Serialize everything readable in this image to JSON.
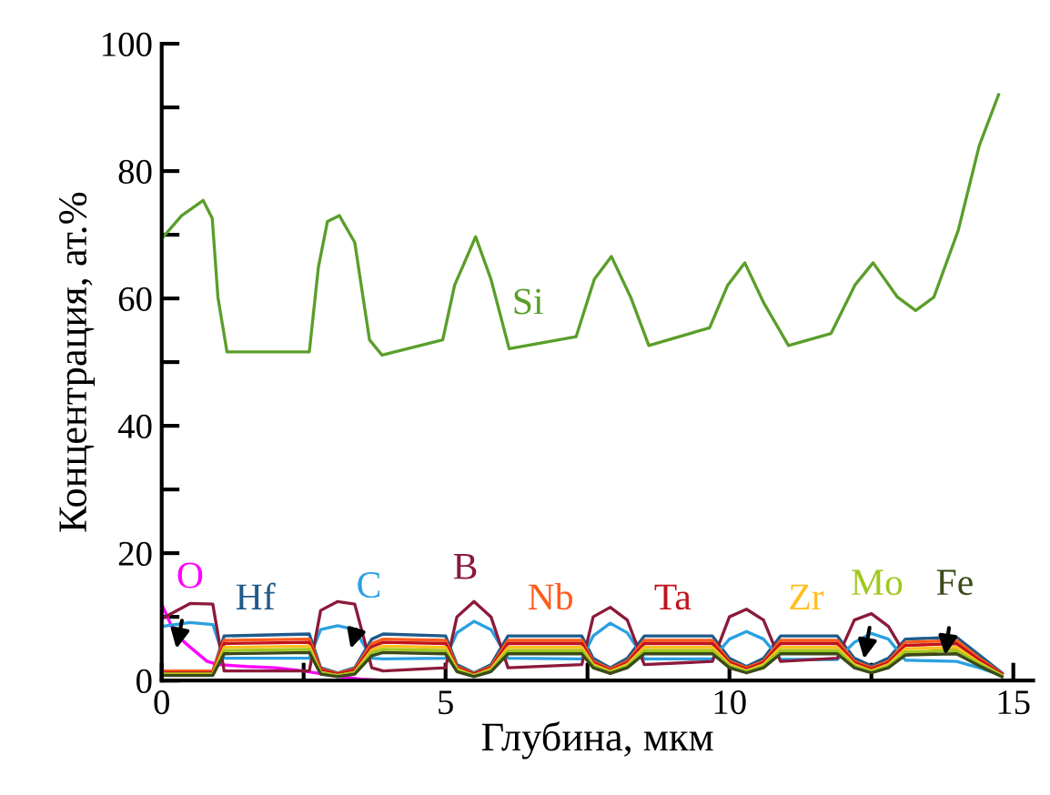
{
  "chart_data": {
    "type": "line",
    "xlabel": "Глубина, мкм",
    "ylabel": "Концентрация, ат.%",
    "xlim": [
      0,
      15.35
    ],
    "ylim": [
      0,
      100
    ],
    "xticks": [
      0,
      {
        "value": 2.5,
        "label": null
      },
      5,
      {
        "value": 7.5,
        "label": null
      },
      10,
      {
        "value": 12.5,
        "label": null
      },
      15
    ],
    "yticks": [
      0,
      {
        "value": 10,
        "label": null
      },
      20,
      {
        "value": 30,
        "label": null
      },
      40,
      {
        "value": 50,
        "label": null
      },
      60,
      {
        "value": 70,
        "label": null
      },
      80,
      {
        "value": 90,
        "label": null
      },
      100
    ],
    "grid": false,
    "legend": false,
    "marker": "none",
    "line_style": "solid",
    "series": [
      {
        "name": "Si",
        "color": "#5a9e2a",
        "x": [
          0.03,
          0.35,
          0.73,
          0.89,
          0.99,
          1.15,
          2.6,
          2.76,
          2.92,
          3.13,
          3.4,
          3.66,
          3.88,
          4.95,
          5.16,
          5.53,
          5.8,
          6.12,
          7.3,
          7.62,
          7.92,
          8.26,
          8.58,
          9.65,
          9.97,
          10.27,
          10.61,
          11.04,
          11.79,
          12.21,
          12.53,
          12.96,
          13.28,
          13.6,
          14.03,
          14.4,
          14.74
        ],
        "values": [
          69.7,
          73,
          75.4,
          72.6,
          60.2,
          51.6,
          51.6,
          64.9,
          72.1,
          73,
          68.8,
          53.5,
          51.1,
          53.5,
          62.1,
          69.7,
          63,
          52.1,
          54,
          63,
          66.6,
          60.2,
          52.6,
          55.4,
          62.1,
          65.6,
          59.2,
          52.6,
          54.5,
          62.1,
          65.6,
          60.2,
          58.1,
          60.2,
          70.7,
          84,
          92
        ]
      },
      {
        "name": "O",
        "color": "#ff00ff",
        "x": [
          0,
          0.1,
          0.2,
          0.4,
          0.6,
          0.8,
          1.0,
          1.5,
          2.0,
          2.5,
          3.0,
          3.5,
          4.0
        ],
        "values": [
          12,
          10,
          8,
          6,
          4.5,
          3,
          2.5,
          2.2,
          2,
          1.5,
          0.8,
          0.2,
          0
        ]
      },
      {
        "name": "Hf",
        "color": "#1f5a8a",
        "x": [
          0,
          0.5,
          0.9,
          1.1,
          2.6,
          2.8,
          3.1,
          3.4,
          3.7,
          3.9,
          5.0,
          5.2,
          5.5,
          5.8,
          6.1,
          7.4,
          7.6,
          7.9,
          8.2,
          8.5,
          9.7,
          10.0,
          10.3,
          10.6,
          10.9,
          11.9,
          12.2,
          12.5,
          12.8,
          13.1,
          14.0,
          14.4,
          14.8
        ],
        "values": [
          1.5,
          1.5,
          1.5,
          7.0,
          7.3,
          2.0,
          1.2,
          2.0,
          6.5,
          7.3,
          7.0,
          2.5,
          1.2,
          2.5,
          7.0,
          7.0,
          3.5,
          2.0,
          3.5,
          7.0,
          7.0,
          3.5,
          2.2,
          3.5,
          7.0,
          7.0,
          3.5,
          2.3,
          3.5,
          6.5,
          6.8,
          4.0,
          1.2
        ]
      },
      {
        "name": "C",
        "color": "#2aa0e0",
        "x": [
          0,
          0.5,
          0.9,
          1.1,
          2.6,
          2.8,
          3.1,
          3.4,
          3.7,
          3.9,
          5.0,
          5.2,
          5.5,
          5.8,
          6.1,
          7.4,
          7.6,
          7.9,
          8.2,
          8.5,
          9.7,
          10.0,
          10.3,
          10.6,
          10.9,
          11.9,
          12.2,
          12.5,
          12.8,
          13.1,
          14.0,
          14.4,
          14.8
        ],
        "values": [
          8.5,
          9.1,
          8.8,
          3.5,
          3.5,
          8.0,
          8.6,
          8.0,
          3.5,
          3.4,
          3.5,
          7.5,
          9.3,
          8.0,
          3.5,
          3.4,
          7.0,
          9.0,
          7.5,
          3.4,
          3.4,
          6.5,
          7.7,
          6.5,
          3.3,
          3.3,
          6.0,
          7.4,
          6.5,
          3.2,
          3.0,
          2.0,
          0.8
        ]
      },
      {
        "name": "B",
        "color": "#8b1a3a",
        "x": [
          0,
          0.5,
          0.9,
          1.1,
          2.6,
          2.8,
          3.1,
          3.4,
          3.7,
          3.9,
          5.0,
          5.2,
          5.5,
          5.8,
          6.1,
          7.4,
          7.6,
          7.9,
          8.2,
          8.5,
          9.7,
          10.0,
          10.3,
          10.6,
          10.9,
          11.9,
          12.2,
          12.5,
          12.8,
          13.1,
          14.0,
          14.4,
          14.8
        ],
        "values": [
          9.7,
          12.1,
          12.0,
          1.5,
          1.5,
          11.0,
          12.4,
          12.0,
          2.0,
          1.5,
          2.0,
          10.0,
          12.4,
          10.0,
          2.0,
          2.5,
          10.0,
          11.5,
          9.5,
          2.5,
          3.0,
          10.0,
          11.2,
          9.5,
          3.0,
          3.5,
          9.5,
          10.5,
          8.5,
          4.0,
          5.0,
          3.0,
          1.0
        ]
      },
      {
        "name": "Nb",
        "color": "#ff5a1a",
        "x": [
          0,
          0.5,
          0.9,
          1.1,
          2.6,
          2.8,
          3.1,
          3.4,
          3.7,
          3.9,
          5.0,
          5.2,
          5.5,
          5.8,
          6.1,
          7.4,
          7.6,
          7.9,
          8.2,
          8.5,
          9.7,
          10.0,
          10.3,
          10.6,
          10.9,
          11.9,
          12.2,
          12.5,
          12.8,
          13.1,
          14.0,
          14.4,
          14.8
        ],
        "values": [
          1.5,
          1.5,
          1.5,
          6.3,
          6.5,
          1.8,
          1.1,
          1.8,
          5.8,
          6.5,
          6.3,
          2.2,
          1.1,
          2.2,
          6.3,
          6.3,
          3.0,
          1.8,
          3.0,
          6.3,
          6.3,
          3.0,
          2.0,
          3.0,
          6.3,
          6.3,
          3.0,
          2.0,
          3.0,
          6.0,
          6.3,
          3.5,
          1.1
        ]
      },
      {
        "name": "Ta",
        "color": "#c0141e",
        "x": [
          0,
          0.5,
          0.9,
          1.1,
          2.6,
          2.8,
          3.1,
          3.4,
          3.7,
          3.9,
          5.0,
          5.2,
          5.5,
          5.8,
          6.1,
          7.4,
          7.6,
          7.9,
          8.2,
          8.5,
          9.7,
          10.0,
          10.3,
          10.6,
          10.9,
          11.9,
          12.2,
          12.5,
          12.8,
          13.1,
          14.0,
          14.4,
          14.8
        ],
        "values": [
          1.2,
          1.2,
          1.2,
          5.8,
          6.0,
          1.6,
          1.0,
          1.6,
          5.3,
          6.0,
          5.8,
          2.0,
          1.0,
          2.0,
          5.8,
          5.8,
          2.8,
          1.6,
          2.8,
          5.8,
          5.8,
          2.8,
          1.8,
          2.8,
          5.8,
          5.8,
          2.8,
          1.8,
          2.8,
          5.5,
          5.8,
          3.2,
          1.0
        ]
      },
      {
        "name": "Zr",
        "color": "#ffc020",
        "x": [
          0,
          0.5,
          0.9,
          1.1,
          2.6,
          2.8,
          3.1,
          3.4,
          3.7,
          3.9,
          5.0,
          5.2,
          5.5,
          5.8,
          6.1,
          7.4,
          7.6,
          7.9,
          8.2,
          8.5,
          9.7,
          10.0,
          10.3,
          10.6,
          10.9,
          11.9,
          12.2,
          12.5,
          12.8,
          13.1,
          14.0,
          14.4,
          14.8
        ],
        "values": [
          1.0,
          1.0,
          1.0,
          5.2,
          5.4,
          1.3,
          0.8,
          1.3,
          4.8,
          5.4,
          5.2,
          1.8,
          0.8,
          1.8,
          5.2,
          5.2,
          2.5,
          1.4,
          2.5,
          5.2,
          5.2,
          2.5,
          1.5,
          2.5,
          5.2,
          5.2,
          2.5,
          1.5,
          2.5,
          5.0,
          5.2,
          2.8,
          0.8
        ]
      },
      {
        "name": "Mo",
        "color": "#a0c81e",
        "x": [
          0,
          0.5,
          0.9,
          1.1,
          2.6,
          2.8,
          3.1,
          3.4,
          3.7,
          3.9,
          5.0,
          5.2,
          5.5,
          5.8,
          6.1,
          7.4,
          7.6,
          7.9,
          8.2,
          8.5,
          9.7,
          10.0,
          10.3,
          10.6,
          10.9,
          11.9,
          12.2,
          12.5,
          12.8,
          13.1,
          14.0,
          14.4,
          14.8
        ],
        "values": [
          1.0,
          1.0,
          1.0,
          4.7,
          4.9,
          1.2,
          0.8,
          1.2,
          4.4,
          4.9,
          4.7,
          1.6,
          0.8,
          1.6,
          4.7,
          4.7,
          2.3,
          1.3,
          2.3,
          4.7,
          4.7,
          2.3,
          1.4,
          2.3,
          4.7,
          4.7,
          2.3,
          1.4,
          2.3,
          4.5,
          4.7,
          2.6,
          0.8
        ]
      },
      {
        "name": "Fe",
        "color": "#3a4a1a",
        "x": [
          0,
          0.5,
          0.9,
          1.1,
          2.6,
          2.8,
          3.1,
          3.4,
          3.7,
          3.9,
          5.0,
          5.2,
          5.5,
          5.8,
          6.1,
          7.4,
          7.6,
          7.9,
          8.2,
          8.5,
          9.7,
          10.0,
          10.3,
          10.6,
          10.9,
          11.9,
          12.2,
          12.5,
          12.8,
          13.1,
          14.0,
          14.4,
          14.8
        ],
        "values": [
          0.8,
          0.8,
          0.8,
          4.2,
          4.4,
          1.0,
          0.6,
          1.0,
          3.9,
          4.4,
          4.2,
          1.4,
          0.6,
          1.4,
          4.2,
          4.2,
          2.0,
          1.1,
          2.0,
          4.2,
          4.2,
          2.0,
          1.2,
          2.0,
          4.2,
          4.2,
          2.0,
          1.2,
          2.0,
          4.0,
          4.2,
          2.3,
          0.6
        ]
      }
    ]
  }
}
